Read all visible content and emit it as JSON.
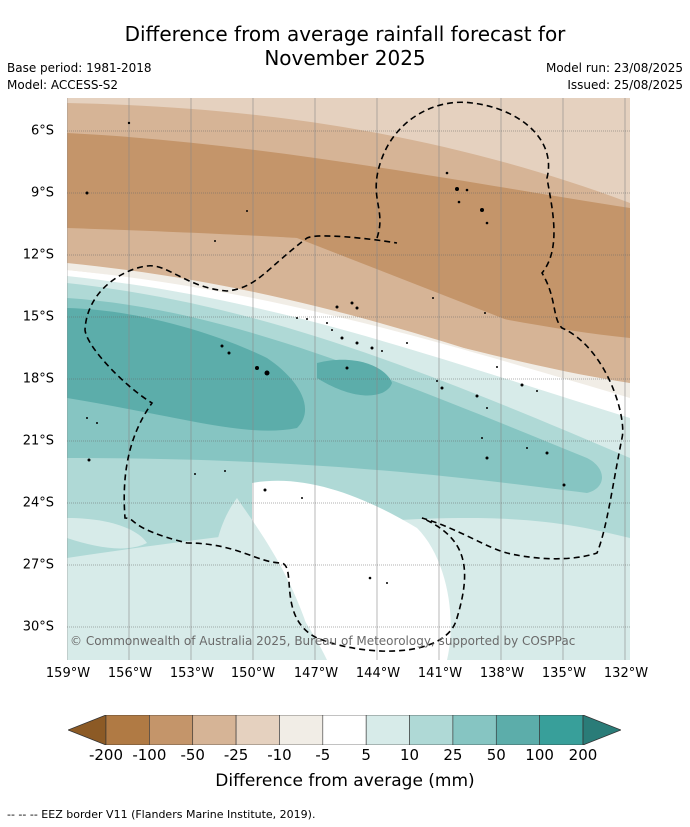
{
  "title_line1": "Difference from average rainfall forecast for",
  "title_line2": "November 2025",
  "meta_left": [
    "Base period: 1981-2018",
    "Model: ACCESS-S2"
  ],
  "meta_right": [
    "Model run: 23/08/2025",
    "Issued: 25/08/2025"
  ],
  "lat_labels": [
    "6°S",
    "9°S",
    "12°S",
    "15°S",
    "18°S",
    "21°S",
    "24°S",
    "27°S",
    "30°S"
  ],
  "lon_labels": [
    "159°W",
    "156°W",
    "153°W",
    "150°W",
    "147°W",
    "144°W",
    "141°W",
    "138°W",
    "135°W",
    "132°W"
  ],
  "copyright": "© Commonwealth of Australia 2025, Bureau of Meteorology, supported by COSPPac",
  "colorbar": {
    "ticks": [
      "-200",
      "-100",
      "-50",
      "-25",
      "-10",
      "-5",
      "5",
      "10",
      "25",
      "50",
      "100",
      "200"
    ],
    "colors": [
      "#8c5a25",
      "#b07a44",
      "#c4956a",
      "#d6b496",
      "#e5d1bf",
      "#f1ede6",
      "#ffffff",
      "#d7ebe9",
      "#afd9d6",
      "#86c5c2",
      "#5cadaa",
      "#389f9a",
      "#2a7c78"
    ],
    "label": "Difference from average (mm)"
  },
  "footnote": "--  --  -- EEZ border V11 (Flanders Marine Institute, 2019)."
}
